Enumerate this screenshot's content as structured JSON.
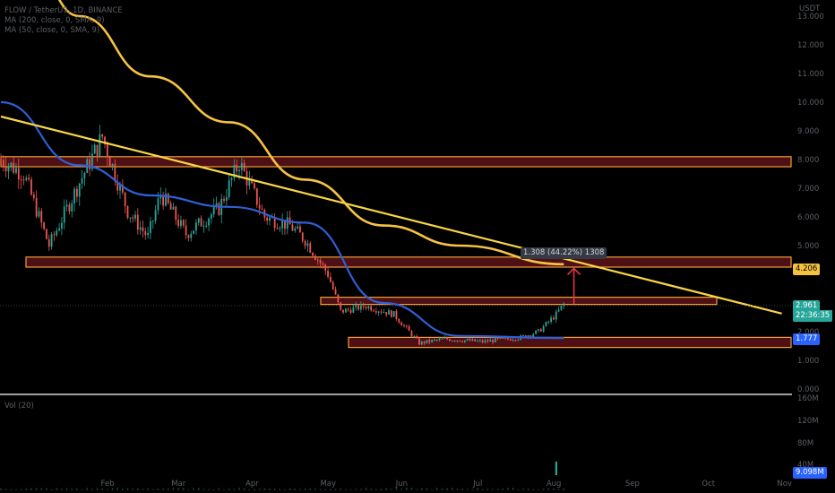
{
  "header": {
    "symbol_line": "FLOW / TetherUS, 1D, BINANCE",
    "ma1": "MA (200, close, 0, SMA, 9)",
    "ma2": "MA (50, close, 0, SMA, 9)",
    "volume_label": "Vol (20)"
  },
  "price_tags": {
    "current_price": "2.961",
    "countdown": "22:36:35",
    "ma50_value": "1.777",
    "resistance_level": "4.206",
    "volume_value": "9.098M"
  },
  "measure_label": "1.308 (44.22%) 1308",
  "colors": {
    "background": "#000000",
    "up_candle": "#26a69a",
    "down_candle": "#ef5350",
    "ma200": "#f7c244",
    "ma50": "#2f5fd7",
    "trendline": "#f7d545",
    "zone_border": "#f29d38",
    "zone_fill": "#5c1318",
    "measure_arrow": "#f23645",
    "axis_text": "#5c5f66"
  },
  "chart_data": {
    "type": "candlestick",
    "symbol": "FLOW/USDT",
    "timeframe": "1D",
    "exchange": "BINANCE",
    "currency": "USDT",
    "x_tick_labels": [
      "Feb",
      "Mar",
      "Apr",
      "May",
      "Jun",
      "Jul",
      "Aug",
      "Sep",
      "Oct",
      "Nov"
    ],
    "y_tick_labels": [
      "13.000",
      "12.000",
      "11.000",
      "10.000",
      "9.000",
      "8.000",
      "7.000",
      "6.000",
      "5.000",
      "4.000",
      "3.000",
      "2.000",
      "1.000",
      "0.000"
    ],
    "volume_tick_labels": [
      "160M",
      "120M",
      "80M",
      "40M"
    ],
    "current_price": 2.961,
    "ma50_last": 1.777,
    "resistance_level": 4.206,
    "zones": [
      {
        "low": 7.75,
        "high": 8.1
      },
      {
        "low": 4.25,
        "high": 4.6
      },
      {
        "low": 2.95,
        "high": 3.2
      },
      {
        "low": 1.45,
        "high": 1.8
      }
    ],
    "ma200": [
      {
        "x": "Jan 15",
        "y": 14.3
      },
      {
        "x": "Feb 1",
        "y": 13.0
      },
      {
        "x": "Mar 1",
        "y": 10.9
      },
      {
        "x": "Apr 1",
        "y": 9.3
      },
      {
        "x": "May 1",
        "y": 7.3
      },
      {
        "x": "Jun 1",
        "y": 5.7
      },
      {
        "x": "Jul 1",
        "y": 5.0
      },
      {
        "x": "Aug 11",
        "y": 4.35
      }
    ],
    "ma50": [
      {
        "x": "Jan 1",
        "y": 10.0
      },
      {
        "x": "Feb 1",
        "y": 7.8
      },
      {
        "x": "Mar 1",
        "y": 6.75
      },
      {
        "x": "Apr 1",
        "y": 6.35
      },
      {
        "x": "May 1",
        "y": 5.8
      },
      {
        "x": "Jun 1",
        "y": 3.0
      },
      {
        "x": "Jul 1",
        "y": 1.85
      },
      {
        "x": "Aug 11",
        "y": 1.777
      }
    ],
    "trendline": [
      {
        "x": "Jan 1",
        "y": 9.5
      },
      {
        "x": "Nov 5",
        "y": 2.63
      }
    ],
    "price_path": [
      {
        "x": "Jan 1",
        "y": 8.0
      },
      {
        "x": "Jan 10",
        "y": 7.5
      },
      {
        "x": "Jan 20",
        "y": 5.0
      },
      {
        "x": "Feb 1",
        "y": 7.2
      },
      {
        "x": "Feb 10",
        "y": 8.8
      },
      {
        "x": "Feb 20",
        "y": 6.2
      },
      {
        "x": "Feb 28",
        "y": 5.3
      },
      {
        "x": "Mar 5",
        "y": 6.8
      },
      {
        "x": "Mar 15",
        "y": 5.4
      },
      {
        "x": "Mar 28",
        "y": 6.3
      },
      {
        "x": "Apr 5",
        "y": 7.9
      },
      {
        "x": "Apr 15",
        "y": 6.0
      },
      {
        "x": "Apr 25",
        "y": 5.7
      },
      {
        "x": "May 1",
        "y": 5.2
      },
      {
        "x": "May 10",
        "y": 4.0
      },
      {
        "x": "May 15",
        "y": 2.7
      },
      {
        "x": "May 25",
        "y": 2.9
      },
      {
        "x": "Jun 5",
        "y": 2.6
      },
      {
        "x": "Jun 15",
        "y": 1.6
      },
      {
        "x": "Jun 25",
        "y": 1.75
      },
      {
        "x": "Jul 10",
        "y": 1.65
      },
      {
        "x": "Jul 25",
        "y": 1.8
      },
      {
        "x": "Aug 1",
        "y": 2.0
      },
      {
        "x": "Aug 8",
        "y": 2.6
      },
      {
        "x": "Aug 11",
        "y": 2.961
      }
    ],
    "measurement": {
      "change": 1.308,
      "percent": 44.22,
      "ticks": 1308
    },
    "volume_spike": {
      "x": "Aug 8",
      "value": "9.098M"
    },
    "ylim": [
      0,
      13.5
    ],
    "grid": false
  }
}
